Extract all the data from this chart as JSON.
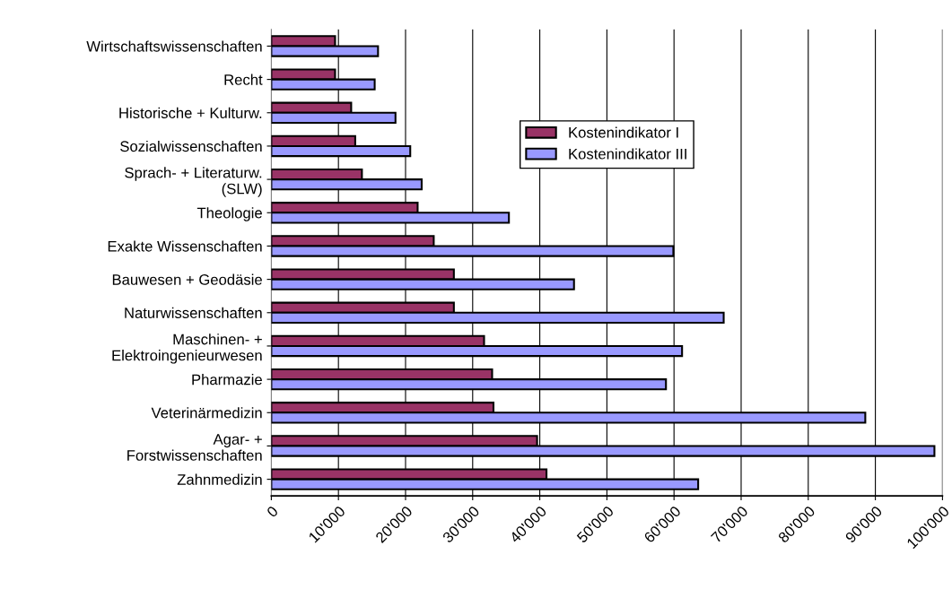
{
  "chart_data": {
    "type": "bar",
    "orientation": "horizontal",
    "categories": [
      "Wirtschaftswissenschaften",
      "Recht",
      "Historische + Kulturw.",
      "Sozialwissenschaften",
      "Sprach- + Literaturw.\n(SLW)",
      "Theologie",
      "Exakte Wissenschaften",
      "Bauwesen + Geodäsie",
      "Naturwissenschaften",
      "Maschinen- +\nElektroingenieurwesen",
      "Pharmazie",
      "Veterinärmedizin",
      "Agar- +\nForstwissenschaften",
      "Zahnmedizin"
    ],
    "series": [
      {
        "name": "Kostenindikator I",
        "color": "#993366",
        "values": [
          9500,
          9500,
          11900,
          12500,
          13500,
          21800,
          24200,
          27200,
          27200,
          31700,
          32900,
          33100,
          39600,
          41000
        ]
      },
      {
        "name": "Kostenindikator III",
        "color": "#9999ff",
        "values": [
          15900,
          15400,
          18500,
          20700,
          22400,
          35400,
          59900,
          45100,
          67400,
          61200,
          58800,
          88500,
          98800,
          63600
        ]
      }
    ],
    "xlim": [
      0,
      100000
    ],
    "xticks": [
      0,
      {
        "value": 10000,
        "label": "10'000"
      },
      {
        "value": 20000,
        "label": "20'000"
      },
      {
        "value": 30000,
        "label": "30'000"
      },
      {
        "value": 40000,
        "label": "40'000"
      },
      {
        "value": 50000,
        "label": "50'000"
      },
      {
        "value": 60000,
        "label": "60'000"
      },
      {
        "value": 70000,
        "label": "70'000"
      },
      {
        "value": 80000,
        "label": "80'000"
      },
      {
        "value": 90000,
        "label": "90'000"
      },
      {
        "value": 100000,
        "label": "100'000"
      }
    ],
    "grid": "x",
    "legend": "top"
  }
}
